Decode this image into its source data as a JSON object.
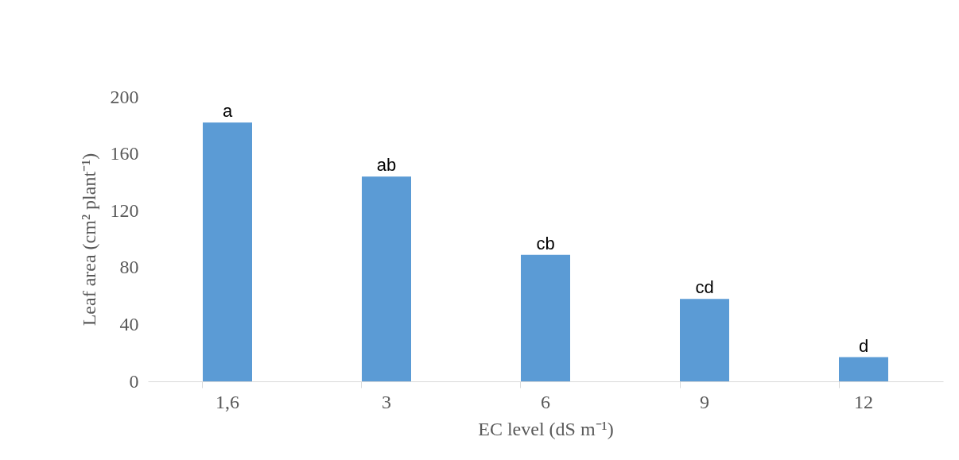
{
  "chart_data": {
    "type": "bar",
    "categories": [
      "1,6",
      "3",
      "6",
      "9",
      "12"
    ],
    "values": [
      182,
      144,
      89,
      58,
      17
    ],
    "color": "#5b9bd5",
    "xlabel": "EC level (dS m⁻¹)",
    "ylabel": "Leaf area (cm² plant⁻¹)",
    "ylim": [
      0,
      200
    ],
    "yticks": [
      0,
      40,
      80,
      120,
      160,
      200
    ],
    "grid": false,
    "annotations": [
      {
        "text": "a",
        "x": "1,6",
        "y": 182
      },
      {
        "text": "ab",
        "x": "3",
        "y": 144
      },
      {
        "text": "cb",
        "x": "6",
        "y": 89
      },
      {
        "text": "cd",
        "x": "9",
        "y": 58
      },
      {
        "text": "d",
        "x": "12",
        "y": 17
      }
    ]
  }
}
